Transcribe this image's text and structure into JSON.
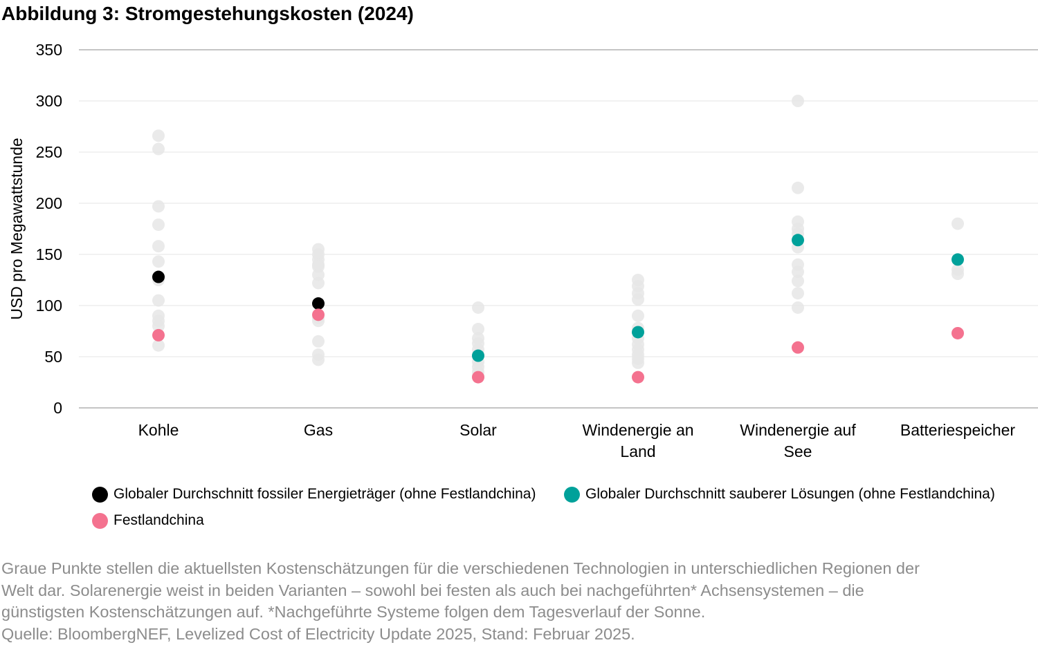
{
  "title": "Abbildung 3: Stromgestehungskosten (2024)",
  "colors": {
    "fossil": "#000000",
    "clean": "#00a19a",
    "china": "#f4728f",
    "regional": "#e6e6e6",
    "gridline": "#e6e6e6",
    "axis": "#b0b0b0",
    "footnote": "#8c8c8c"
  },
  "chart_data": {
    "type": "scatter",
    "ylabel": "USD pro Megawattstunde",
    "ylim": [
      0,
      350
    ],
    "yticks": [
      0,
      50,
      100,
      150,
      200,
      250,
      300,
      350
    ],
    "grid": true,
    "legend_position": "bottom",
    "categories": [
      [
        "Kohle"
      ],
      [
        "Gas"
      ],
      [
        "Solar"
      ],
      [
        "Windenergie an",
        "Land"
      ],
      [
        "Windenergie auf",
        "See"
      ],
      [
        "Batteriespeicher"
      ]
    ],
    "regional_estimates": [
      [
        266,
        253,
        197,
        179,
        158,
        143,
        125,
        105,
        90,
        85,
        80,
        61
      ],
      [
        155,
        150,
        145,
        140,
        138,
        130,
        122,
        88,
        85,
        65,
        52,
        47
      ],
      [
        98,
        77,
        68,
        63,
        57,
        52,
        45,
        40,
        35,
        31
      ],
      [
        125,
        119,
        112,
        106,
        90,
        78,
        68,
        62,
        57,
        52,
        48,
        44
      ],
      [
        300,
        215,
        182,
        175,
        170,
        157,
        140,
        133,
        124,
        112,
        98
      ],
      [
        180,
        135,
        131
      ]
    ],
    "series": [
      {
        "name": "Globaler Durchschnitt fossiler Energieträger (ohne Festlandchina)",
        "color": "#000000",
        "values": [
          128,
          102,
          null,
          null,
          null,
          null
        ]
      },
      {
        "name": "Globaler Durchschnitt sauberer Lösungen (ohne Festlandchina)",
        "color": "#00a19a",
        "values": [
          null,
          null,
          51,
          74,
          164,
          145
        ]
      },
      {
        "name": "Festlandchina",
        "color": "#f4728f",
        "values": [
          71,
          91,
          30,
          30,
          59,
          73
        ]
      }
    ]
  },
  "footnote": [
    "Graue Punkte stellen die aktuellsten Kostenschätzungen für die verschiedenen Technologien in unterschiedlichen Regionen der",
    "Welt dar. Solarenergie weist in beiden Varianten – sowohl bei festen als auch bei nachgeführten* Achsensystemen – die",
    "günstigsten Kostenschätzungen auf. *Nachgeführte Systeme folgen dem Tagesverlauf der Sonne.",
    "Quelle: BloombergNEF, Levelized Cost of Electricity Update 2025, Stand: Februar 2025."
  ]
}
